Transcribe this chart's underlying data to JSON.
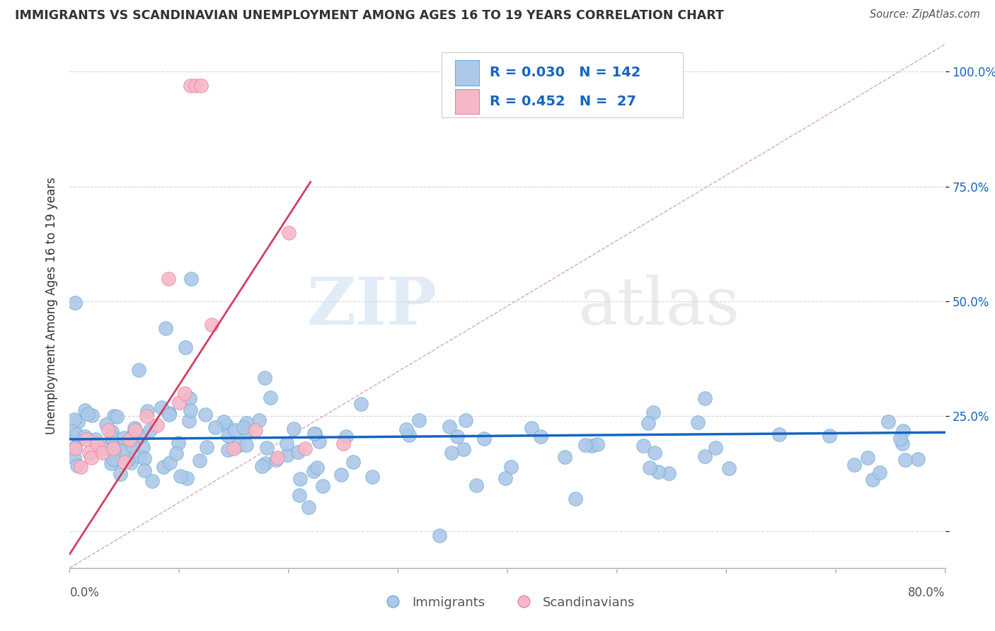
{
  "title": "IMMIGRANTS VS SCANDINAVIAN UNEMPLOYMENT AMONG AGES 16 TO 19 YEARS CORRELATION CHART",
  "source": "Source: ZipAtlas.com",
  "ylabel": "Unemployment Among Ages 16 to 19 years",
  "yticks": [
    0.0,
    0.25,
    0.5,
    0.75,
    1.0
  ],
  "ytick_labels": [
    "",
    "25.0%",
    "50.0%",
    "75.0%",
    "100.0%"
  ],
  "xmin": 0.0,
  "xmax": 0.8,
  "ymin": -0.08,
  "ymax": 1.06,
  "legend_immigrants_R": "0.030",
  "legend_immigrants_N": "142",
  "legend_scandinavians_R": "0.452",
  "legend_scandinavians_N": "27",
  "watermark_zip": "ZIP",
  "watermark_atlas": "atlas",
  "immigrant_color": "#adc8e8",
  "scandinavian_color": "#f5b8c8",
  "immigrant_edge_color": "#6baed6",
  "scandinavian_edge_color": "#f08098",
  "immigrant_line_color": "#1565c0",
  "scandinavian_line_color": "#d04060",
  "diagonal_line_color": "#d8a8b8",
  "grid_color": "#cccccc",
  "background_color": "#ffffff",
  "title_color": "#333333",
  "source_color": "#555555",
  "ylabel_color": "#333333",
  "tick_label_color": "#1565c0",
  "bottom_label_color": "#555555"
}
